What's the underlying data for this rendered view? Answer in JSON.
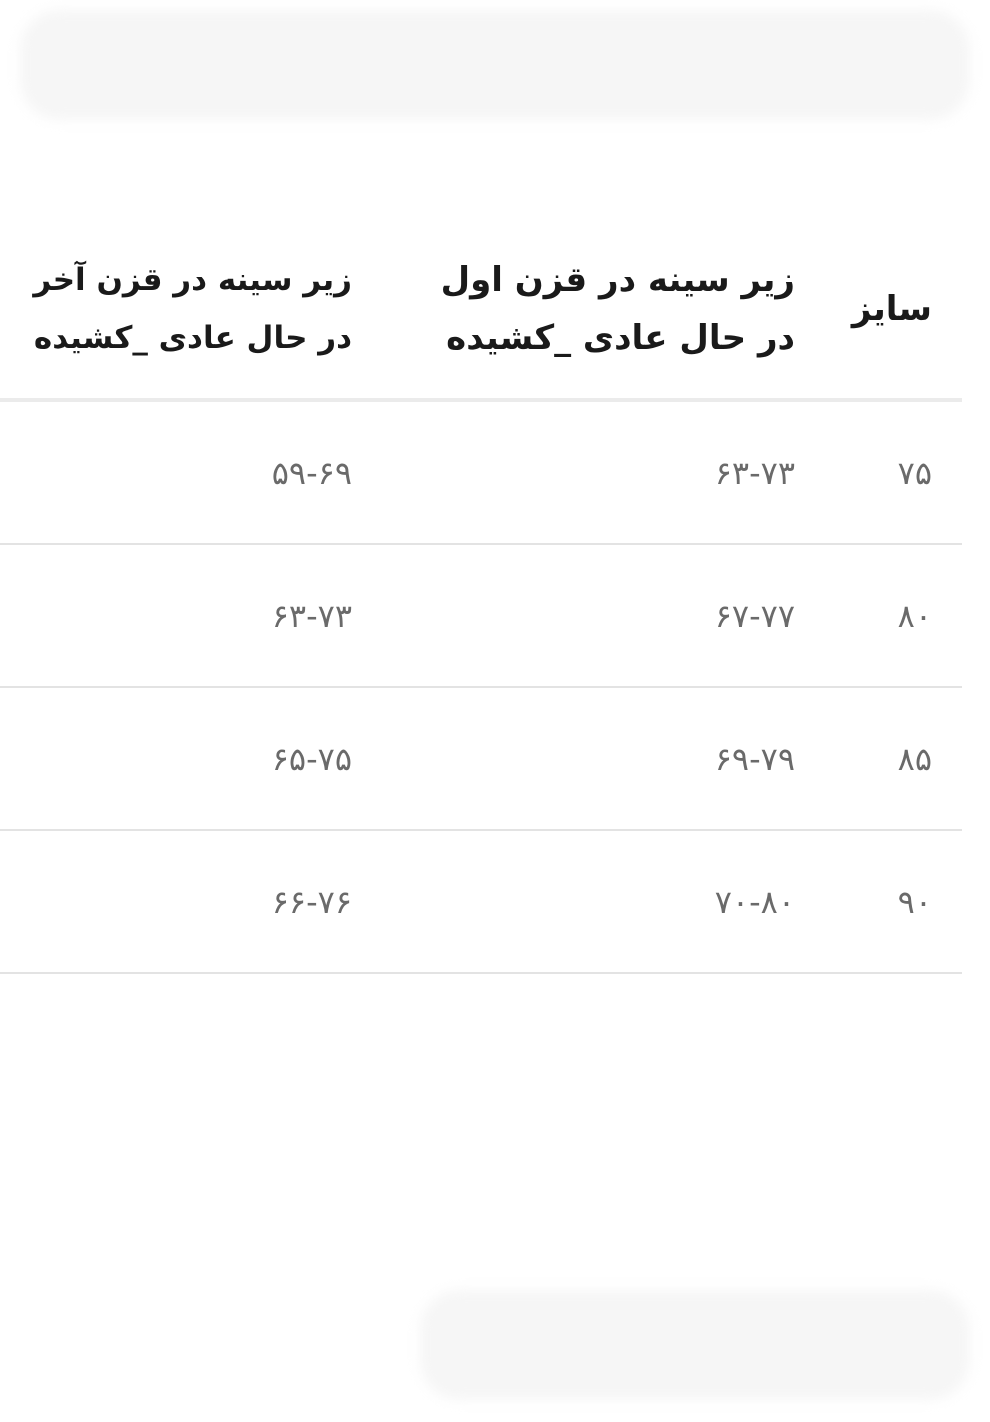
{
  "table": {
    "headers": [
      {
        "line1": "سایز",
        "line2": ""
      },
      {
        "line1": "زیر سینه در قزن اول",
        "line2": "در حال عادی _کشیده"
      },
      {
        "line1": "زیر سینه در قزن آخر",
        "line2": "در حال عادی _کشیده"
      }
    ],
    "rows": [
      [
        "۷۵",
        "۶۳-۷۳",
        "۵۹-۶۹"
      ],
      [
        "۸۰",
        "۶۷-۷۷",
        "۶۳-۷۳"
      ],
      [
        "۸۵",
        "۶۹-۷۹",
        "۶۵-۷۵"
      ],
      [
        "۹۰",
        "۷۰-۸۰",
        "۶۶-۷۶"
      ]
    ]
  }
}
